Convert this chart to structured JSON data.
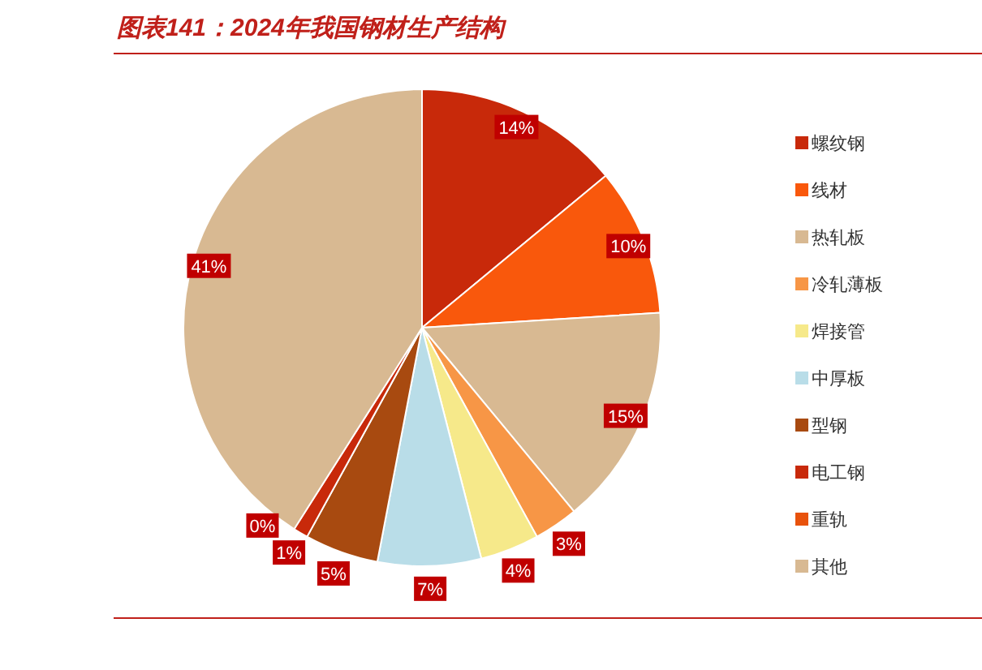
{
  "chart_data": {
    "type": "pie",
    "title": "图表141：2024年我国钢材生产结构",
    "categories": [
      "螺纹钢",
      "线材",
      "热轧板",
      "冷轧薄板",
      "焊接管",
      "中厚板",
      "型钢",
      "电工钢",
      "重轨",
      "其他"
    ],
    "values": [
      14,
      10,
      15,
      3,
      4,
      7,
      5,
      1,
      0,
      41
    ],
    "colors": [
      "#c8290a",
      "#f9580c",
      "#d8b992",
      "#f79646",
      "#f6e98a",
      "#b9dde8",
      "#a84a10",
      "#c8290a",
      "#e8520c",
      "#d8b992"
    ],
    "value_labels": [
      "14%",
      "10%",
      "15%",
      "3%",
      "4%",
      "7%",
      "5%",
      "1%",
      "0%",
      "41%"
    ],
    "legend": "right"
  }
}
